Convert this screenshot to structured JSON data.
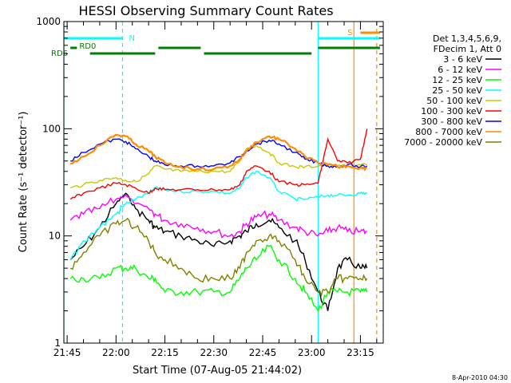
{
  "chart_data": {
    "type": "line",
    "title": "HESSI Observing Summary Count Rates",
    "xlabel": "Start Time (07-Aug-05 21:44:02)",
    "ylabel": "Count Rate (s⁻¹ detector⁻¹)",
    "xlim": [
      "21:44",
      "23:22"
    ],
    "ylim": [
      1,
      1000
    ],
    "yscale": "log",
    "x_tick_labels": [
      "21:45",
      "22:00",
      "22:15",
      "22:30",
      "22:45",
      "23:00",
      "23:15"
    ],
    "y_tick_labels": [
      "1",
      "10",
      "100",
      "1000"
    ],
    "date_stamp": "8-Apr-2010 04:30",
    "legend": {
      "placement": "right",
      "header": [
        "Det 1,3,4,5,6,9,",
        "FDecim 1, Att 0"
      ]
    },
    "flags": [
      {
        "label": "N",
        "color": "#00ffff"
      },
      {
        "label": "RD0",
        "color": "#007f00"
      },
      {
        "label": "RD6",
        "color": "#007f00"
      },
      {
        "label": "S",
        "color": "#ff8c00"
      }
    ],
    "vertical_lines": [
      {
        "time": "21:44",
        "color": "#00ffff",
        "style": "solid"
      },
      {
        "time": "22:02",
        "color": "#00ffff",
        "style": "dashed"
      },
      {
        "time": "23:02",
        "color": "#00ffff",
        "style": "solid"
      },
      {
        "time": "23:13",
        "color": "#ff8c00",
        "style": "solid"
      },
      {
        "time": "23:20",
        "color": "#ff8c00",
        "style": "dashed"
      }
    ],
    "x_times": [
      "21:46",
      "21:50",
      "21:55",
      "22:00",
      "22:03",
      "22:06",
      "22:10",
      "22:12",
      "22:15",
      "22:20",
      "22:25",
      "22:30",
      "22:35",
      "22:38",
      "22:40",
      "22:43",
      "22:47",
      "22:50",
      "22:55",
      "22:58",
      "23:02",
      "23:05",
      "23:08",
      "23:11",
      "23:15",
      "23:17"
    ],
    "series": [
      {
        "name": "3 - 6 keV",
        "color": "#000000",
        "values": [
          6,
          8,
          12,
          20,
          25,
          18,
          14,
          12,
          11,
          10,
          9,
          8,
          9,
          10,
          11,
          13,
          14,
          12,
          9,
          6,
          3,
          2,
          5,
          6,
          5,
          5
        ]
      },
      {
        "name": "6 - 12 keV",
        "color": "#ff00ff",
        "values": [
          14,
          16,
          18,
          22,
          24,
          20,
          18,
          16,
          14,
          13,
          12,
          11,
          10,
          11,
          13,
          15,
          16,
          14,
          12,
          11,
          10,
          11,
          12,
          11,
          11,
          11
        ]
      },
      {
        "name": "12 - 25 keV",
        "color": "#00ff00",
        "values": [
          4,
          4,
          4,
          5,
          5,
          5,
          4,
          4,
          3,
          3,
          3,
          3,
          3,
          4,
          5,
          6,
          8,
          6,
          4,
          3,
          2,
          3,
          3,
          3,
          3,
          3
        ]
      },
      {
        "name": "25 - 50 keV",
        "color": "#00ffff",
        "values": [
          6,
          9,
          12,
          16,
          20,
          22,
          25,
          28,
          27,
          26,
          26,
          26,
          25,
          28,
          35,
          40,
          35,
          26,
          22,
          22,
          23,
          24,
          24,
          24,
          25,
          25
        ]
      },
      {
        "name": "50 - 100 keV",
        "color": "#c8c800",
        "values": [
          28,
          30,
          33,
          35,
          33,
          32,
          38,
          45,
          42,
          40,
          40,
          40,
          40,
          50,
          65,
          70,
          60,
          48,
          44,
          44,
          45,
          46,
          45,
          45,
          46,
          46
        ]
      },
      {
        "name": "100 - 300 keV",
        "color": "#ff0000",
        "values": [
          22,
          25,
          28,
          31,
          30,
          28,
          25,
          28,
          27,
          27,
          27,
          27,
          27,
          30,
          40,
          45,
          40,
          32,
          30,
          30,
          31,
          80,
          50,
          48,
          52,
          100
        ]
      },
      {
        "name": "300 - 800 keV",
        "color": "#0000ff",
        "values": [
          50,
          60,
          72,
          80,
          76,
          65,
          55,
          50,
          46,
          45,
          45,
          45,
          48,
          55,
          62,
          72,
          78,
          72,
          60,
          52,
          48,
          45,
          44,
          46,
          44,
          45
        ]
      },
      {
        "name": "800 - 7000 keV",
        "color": "#ff8c00",
        "values": [
          47,
          55,
          70,
          88,
          85,
          72,
          62,
          55,
          48,
          44,
          42,
          42,
          45,
          52,
          62,
          75,
          85,
          80,
          65,
          55,
          48,
          46,
          44,
          45,
          43,
          43
        ]
      },
      {
        "name": "7000 - 20000 keV",
        "color": "#808000",
        "values": [
          5,
          7,
          10,
          13,
          14,
          12,
          9,
          7,
          6,
          5,
          4,
          4,
          4,
          5,
          7,
          9,
          10,
          9,
          6,
          4,
          3,
          3,
          4,
          4,
          4,
          4
        ]
      }
    ]
  }
}
